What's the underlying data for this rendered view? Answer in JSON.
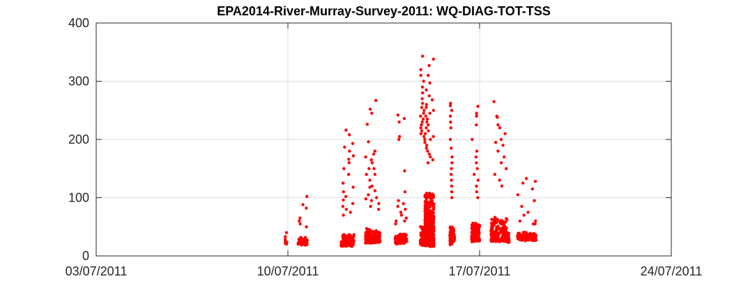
{
  "chart_data": {
    "type": "scatter",
    "title": "EPA2014-River-Murray-Survey-2011: WQ-DIAG-TOT-TSS",
    "xlabel": "",
    "ylabel": "",
    "x_axis_type": "date",
    "xlim": [
      "03/07/2011",
      "24/07/2011"
    ],
    "ylim": [
      0,
      400
    ],
    "x_ticks": [
      "03/07/2011",
      "10/07/2011",
      "17/07/2011",
      "24/07/2011"
    ],
    "y_ticks": [
      0,
      100,
      200,
      300,
      400
    ],
    "grid": true,
    "box": true,
    "marker_color": "#ff0000",
    "series": [
      {
        "clusters": [
          {
            "date": "09/07/2011",
            "hour_from": 21.5,
            "hour_to": 23.0,
            "count": 10,
            "base": 24,
            "spread": 6,
            "outliers": [
              40,
              33,
              28
            ]
          },
          {
            "date": "10/07/2011",
            "hour_from": 9.0,
            "hour_to": 17.0,
            "count": 70,
            "base": 24,
            "spread": 12,
            "outliers": [
              102,
              88,
              82,
              65,
              60,
              55,
              50
            ]
          },
          {
            "date": "11/07/2011",
            "hour_from": 22.5,
            "hour_to": 23.99,
            "count": 20,
            "base": 22,
            "spread": 10,
            "outliers": []
          },
          {
            "date": "12/07/2011",
            "hour_from": 0.0,
            "hour_to": 10.0,
            "count": 140,
            "base": 22,
            "spread": 18,
            "outliers": [
              216,
              208,
              193,
              187,
              180,
              172,
              166,
              160,
              150,
              140,
              125,
              118,
              110,
              102,
              96,
              90,
              85,
              80,
              75,
              70
            ]
          },
          {
            "date": "12/07/2011",
            "hour_from": 20.0,
            "hour_to": 23.99,
            "count": 60,
            "base": 28,
            "spread": 22,
            "outliers": [
              226,
              196,
              170,
              150,
              140,
              130,
              118,
              105,
              98
            ]
          },
          {
            "date": "13/07/2011",
            "hour_from": 0.0,
            "hour_to": 9.0,
            "count": 110,
            "base": 28,
            "spread": 20,
            "outliers": [
              267,
              252,
              245,
              180,
              175,
              165,
              160,
              150,
              140,
              120,
              112,
              100,
              95,
              90,
              85,
              80
            ]
          },
          {
            "date": "13/07/2011",
            "hour_from": 22.0,
            "hour_to": 23.99,
            "count": 25,
            "base": 26,
            "spread": 10,
            "outliers": [
              60,
              55
            ]
          },
          {
            "date": "14/07/2011",
            "hour_from": 0.0,
            "hour_to": 8.0,
            "count": 90,
            "base": 27,
            "spread": 15,
            "outliers": [
              242,
              236,
              230,
              205,
              200,
              146,
              110,
              95,
              90,
              85,
              80,
              75,
              70,
              65,
              60
            ]
          },
          {
            "date": "14/07/2011",
            "hour_from": 20.0,
            "hour_to": 23.99,
            "count": 80,
            "base": 24,
            "spread": 30,
            "outliers": [
              343,
              320,
              310,
              300,
              290,
              280,
              270,
              262,
              255,
              250,
              245,
              240,
              235,
              230,
              225,
              220,
              215,
              210,
              205,
              200
            ]
          },
          {
            "date": "15/07/2011",
            "hour_from": 0.0,
            "hour_to": 8.0,
            "count": 420,
            "base": 22,
            "spread": 90,
            "outliers": [
              338,
              327,
              310,
              297,
              285,
              275,
              268,
              260,
              255,
              250,
              245,
              240,
              235,
              230,
              225,
              220,
              215,
              210,
              205,
              200,
              195,
              190,
              185,
              180,
              175,
              170,
              165,
              160
            ]
          },
          {
            "date": "15/07/2011",
            "hour_from": 22.0,
            "hour_to": 23.99,
            "count": 60,
            "base": 25,
            "spread": 30,
            "outliers": [
              262,
              258,
              250,
              240,
              230,
              220,
              200,
              185,
              170,
              160,
              150,
              140,
              130,
              120,
              110,
              100
            ]
          },
          {
            "date": "16/07/2011",
            "hour_from": 0.0,
            "hour_to": 2.0,
            "count": 30,
            "base": 30,
            "spread": 20,
            "outliers": []
          },
          {
            "date": "16/07/2011",
            "hour_from": 17.0,
            "hour_to": 23.99,
            "count": 160,
            "base": 30,
            "spread": 30,
            "outliers": [
              257,
              245,
              240,
              225,
              200,
              180,
              170,
              160,
              150,
              140,
              130,
              120,
              110,
              100
            ]
          },
          {
            "date": "17/07/2011",
            "hour_from": 10.0,
            "hour_to": 23.99,
            "count": 170,
            "base": 30,
            "spread": 40,
            "outliers": [
              265,
              240,
              238,
              225,
              220,
              210,
              200,
              195,
              190,
              180,
              170,
              160,
              150,
              140,
              130,
              120
            ]
          },
          {
            "date": "18/07/2011",
            "hour_from": 0.0,
            "hour_to": 2.0,
            "count": 30,
            "base": 28,
            "spread": 15,
            "outliers": []
          },
          {
            "date": "18/07/2011",
            "hour_from": 9.0,
            "hour_to": 23.99,
            "count": 100,
            "base": 32,
            "spread": 12,
            "outliers": [
              133,
              125,
              115,
              105,
              95,
              85,
              75,
              70,
              60,
              55
            ]
          },
          {
            "date": "19/07/2011",
            "hour_from": 0.0,
            "hour_to": 1.5,
            "count": 25,
            "base": 32,
            "spread": 10,
            "outliers": [
              128,
              60,
              55
            ]
          }
        ]
      }
    ]
  }
}
